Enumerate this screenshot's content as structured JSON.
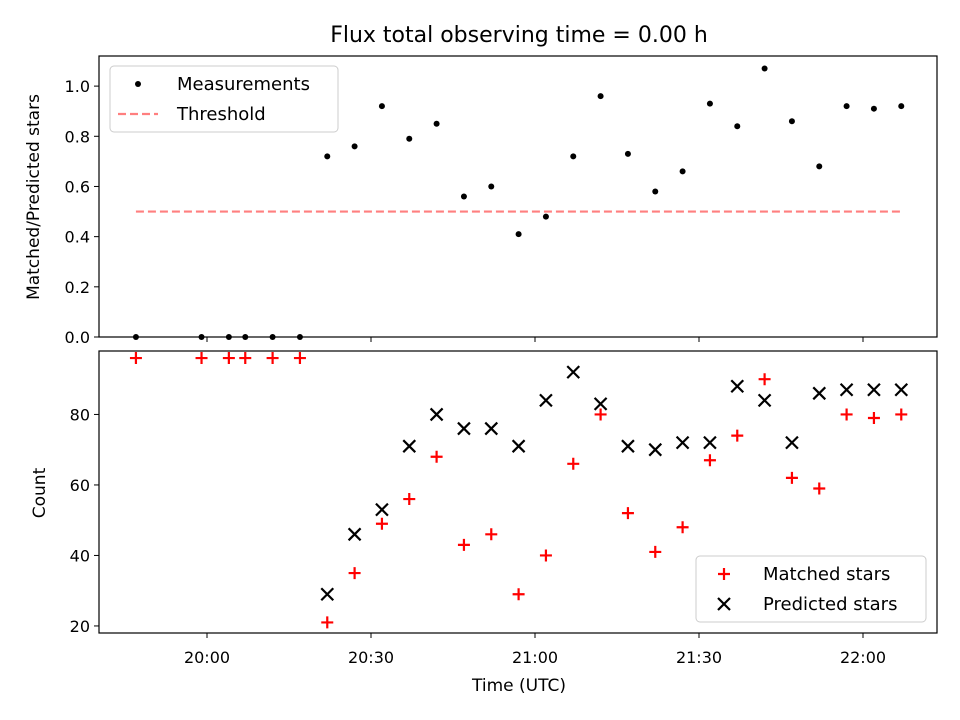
{
  "chart_data": [
    {
      "type": "scatter",
      "title": "Flux total observing time = 0.00 h",
      "ylabel": "Matched/Predicted stars",
      "xlabel": "",
      "ylim": [
        0,
        1.12
      ],
      "yticks": [
        0.0,
        0.2,
        0.4,
        0.6,
        0.8,
        1.0
      ],
      "ytick_labels": [
        "0.0",
        "0.2",
        "0.4",
        "0.6",
        "0.8",
        "1.0"
      ],
      "legend_position": "upper-left",
      "series": [
        {
          "name": "Measurements",
          "color": "#000000",
          "marker": "dot",
          "points": [
            [
              "19:47",
              0.0
            ],
            [
              "19:59",
              0.0
            ],
            [
              "20:04",
              0.0
            ],
            [
              "20:07",
              0.0
            ],
            [
              "20:12",
              0.0
            ],
            [
              "20:17",
              0.0
            ],
            [
              "20:22",
              0.72
            ],
            [
              "20:27",
              0.76
            ],
            [
              "20:32",
              0.92
            ],
            [
              "20:37",
              0.79
            ],
            [
              "20:42",
              0.85
            ],
            [
              "20:47",
              0.56
            ],
            [
              "20:52",
              0.6
            ],
            [
              "20:57",
              0.41
            ],
            [
              "21:02",
              0.48
            ],
            [
              "21:07",
              0.72
            ],
            [
              "21:12",
              0.96
            ],
            [
              "21:17",
              0.73
            ],
            [
              "21:22",
              0.58
            ],
            [
              "21:27",
              0.66
            ],
            [
              "21:32",
              0.93
            ],
            [
              "21:37",
              0.84
            ],
            [
              "21:42",
              1.07
            ],
            [
              "21:47",
              0.86
            ],
            [
              "21:52",
              0.68
            ],
            [
              "21:57",
              0.92
            ],
            [
              "22:02",
              0.91
            ],
            [
              "22:07",
              0.92
            ]
          ]
        },
        {
          "name": "Threshold",
          "color": "#ff7f7f",
          "marker": "dashed-line",
          "points": [
            [
              "19:47",
              0.5
            ],
            [
              "22:07",
              0.5
            ]
          ]
        }
      ]
    },
    {
      "type": "scatter",
      "title": "",
      "ylabel": "Count",
      "xlabel": "Time (UTC)",
      "ylim": [
        18,
        98
      ],
      "yticks": [
        20,
        40,
        60,
        80
      ],
      "ytick_labels": [
        "20",
        "40",
        "60",
        "80"
      ],
      "xticks": [
        "20:00",
        "20:30",
        "21:00",
        "21:30",
        "22:00"
      ],
      "legend_position": "lower-right",
      "series": [
        {
          "name": "Matched stars",
          "color": "#ff0000",
          "marker": "plus",
          "points": [
            [
              "19:47",
              96
            ],
            [
              "19:59",
              96
            ],
            [
              "20:04",
              96
            ],
            [
              "20:07",
              96
            ],
            [
              "20:12",
              96
            ],
            [
              "20:17",
              96
            ],
            [
              "20:22",
              21
            ],
            [
              "20:27",
              35
            ],
            [
              "20:32",
              49
            ],
            [
              "20:37",
              56
            ],
            [
              "20:42",
              68
            ],
            [
              "20:47",
              43
            ],
            [
              "20:52",
              46
            ],
            [
              "20:57",
              29
            ],
            [
              "21:02",
              40
            ],
            [
              "21:07",
              66
            ],
            [
              "21:12",
              80
            ],
            [
              "21:17",
              52
            ],
            [
              "21:22",
              41
            ],
            [
              "21:27",
              48
            ],
            [
              "21:32",
              67
            ],
            [
              "21:37",
              74
            ],
            [
              "21:42",
              90
            ],
            [
              "21:47",
              62
            ],
            [
              "21:52",
              59
            ],
            [
              "21:57",
              80
            ],
            [
              "22:02",
              79
            ],
            [
              "22:07",
              80
            ]
          ]
        },
        {
          "name": "Predicted stars",
          "color": "#000000",
          "marker": "x",
          "points": [
            [
              "20:22",
              29
            ],
            [
              "20:27",
              46
            ],
            [
              "20:32",
              53
            ],
            [
              "20:37",
              71
            ],
            [
              "20:42",
              80
            ],
            [
              "20:47",
              76
            ],
            [
              "20:52",
              76
            ],
            [
              "20:57",
              71
            ],
            [
              "21:02",
              84
            ],
            [
              "21:07",
              92
            ],
            [
              "21:12",
              83
            ],
            [
              "21:17",
              71
            ],
            [
              "21:22",
              70
            ],
            [
              "21:27",
              72
            ],
            [
              "21:32",
              72
            ],
            [
              "21:37",
              88
            ],
            [
              "21:42",
              84
            ],
            [
              "21:47",
              72
            ],
            [
              "21:52",
              86
            ],
            [
              "21:57",
              87
            ],
            [
              "22:02",
              87
            ],
            [
              "22:07",
              87
            ]
          ]
        }
      ]
    }
  ]
}
